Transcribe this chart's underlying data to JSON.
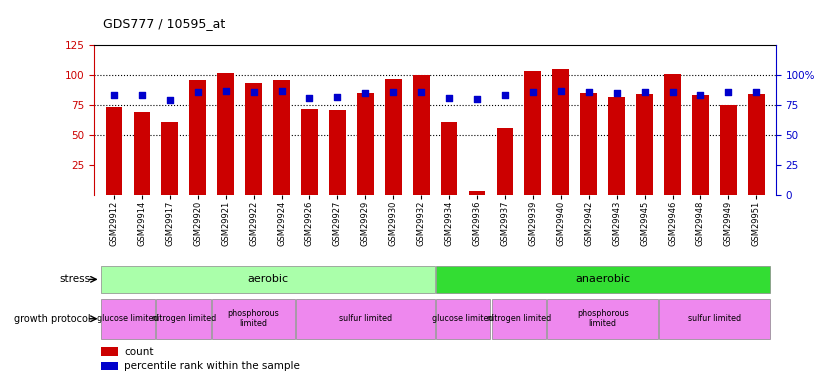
{
  "title": "GDS777 / 10595_at",
  "samples": [
    "GSM29912",
    "GSM29914",
    "GSM29917",
    "GSM29920",
    "GSM29921",
    "GSM29922",
    "GSM29924",
    "GSM29926",
    "GSM29927",
    "GSM29929",
    "GSM29930",
    "GSM29932",
    "GSM29934",
    "GSM29936",
    "GSM29937",
    "GSM29939",
    "GSM29940",
    "GSM29942",
    "GSM29943",
    "GSM29945",
    "GSM29946",
    "GSM29948",
    "GSM29949",
    "GSM29951"
  ],
  "counts": [
    73,
    69,
    61,
    96,
    102,
    93,
    96,
    72,
    71,
    85,
    97,
    100,
    61,
    3,
    56,
    103,
    105,
    85,
    82,
    84,
    101,
    83,
    75,
    84
  ],
  "percentiles": [
    83,
    83,
    79,
    86,
    87,
    86,
    87,
    81,
    82,
    85,
    86,
    86,
    81,
    80,
    83,
    86,
    87,
    86,
    85,
    86,
    86,
    83,
    86,
    86
  ],
  "bar_color": "#cc0000",
  "dot_color": "#0000cc",
  "ylim_left": [
    0,
    125
  ],
  "yticks_left": [
    25,
    50,
    75,
    100,
    125
  ],
  "yticks_right_vals": [
    0,
    25,
    50,
    75,
    100
  ],
  "yticks_right_labels": [
    "0",
    "25",
    "50",
    "75",
    "100%"
  ],
  "dotted_lines": [
    50,
    75,
    100
  ],
  "stress_aerobic_samples": [
    "GSM29912",
    "GSM29914",
    "GSM29917",
    "GSM29920",
    "GSM29921",
    "GSM29922",
    "GSM29924",
    "GSM29926",
    "GSM29927",
    "GSM29929",
    "GSM29930",
    "GSM29932"
  ],
  "stress_anaerobic_samples": [
    "GSM29934",
    "GSM29936",
    "GSM29937",
    "GSM29939",
    "GSM29940",
    "GSM29942",
    "GSM29943",
    "GSM29945",
    "GSM29946",
    "GSM29948",
    "GSM29949",
    "GSM29951"
  ],
  "aerobic_color": "#aaffaa",
  "anaerobic_color": "#33dd33",
  "protocol_groups": [
    {
      "label": "glucose limited",
      "samples": [
        "GSM29912",
        "GSM29914"
      ]
    },
    {
      "label": "nitrogen limited",
      "samples": [
        "GSM29917",
        "GSM29920"
      ]
    },
    {
      "label": "phosphorous\nlimited",
      "samples": [
        "GSM29921",
        "GSM29922",
        "GSM29924"
      ]
    },
    {
      "label": "sulfur limited",
      "samples": [
        "GSM29926",
        "GSM29927",
        "GSM29929",
        "GSM29930",
        "GSM29932"
      ]
    },
    {
      "label": "glucose limited",
      "samples": [
        "GSM29934",
        "GSM29936"
      ]
    },
    {
      "label": "nitrogen limited",
      "samples": [
        "GSM29937",
        "GSM29939"
      ]
    },
    {
      "label": "phosphorous\nlimited",
      "samples": [
        "GSM29940",
        "GSM29942",
        "GSM29943",
        "GSM29945"
      ]
    },
    {
      "label": "sulfur limited",
      "samples": [
        "GSM29946",
        "GSM29948",
        "GSM29949",
        "GSM29951"
      ]
    }
  ],
  "proto_color": "#ee88ee",
  "legend_count_color": "#cc0000",
  "legend_dot_color": "#0000cc",
  "legend_count_label": "count",
  "legend_dot_label": "percentile rank within the sample",
  "axis_left_color": "#cc0000",
  "axis_right_color": "#0000cc",
  "background_color": "#ffffff"
}
